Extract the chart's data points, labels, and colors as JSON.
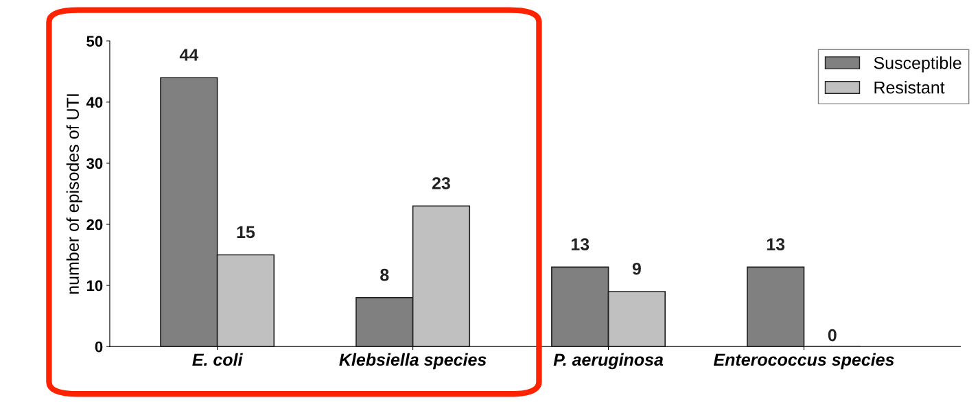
{
  "chart_data": {
    "type": "bar",
    "ylabel": "number of episodes of UTI",
    "categories": [
      "E. coli",
      "Klebsiella species",
      "P. aeruginosa",
      "Enterococcus species"
    ],
    "series": [
      {
        "name": "Susceptible",
        "color": "#808080",
        "values": [
          44,
          8,
          13,
          13
        ]
      },
      {
        "name": "Resistant",
        "color": "#c0c0c0",
        "values": [
          15,
          23,
          9,
          0
        ]
      }
    ],
    "ylim": [
      0,
      50
    ],
    "yticks": [
      0,
      10,
      20,
      30,
      40,
      50
    ],
    "data_labels": true,
    "grid": false,
    "legend": "top right"
  }
}
